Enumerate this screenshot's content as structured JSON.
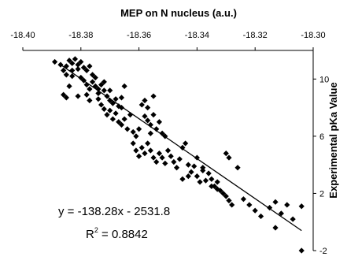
{
  "chart_data": {
    "type": "scatter",
    "title": "MEP on N nucleus (a.u.)",
    "xlabel": "MEP on N nucleus (a.u.)",
    "ylabel": "Experimental pKa Value",
    "x_axis_position": "top",
    "y_axis_position": "right",
    "x_reversed": true,
    "xlim": [
      -18.4,
      -18.3
    ],
    "ylim": [
      -2,
      12
    ],
    "x_ticks": [
      "-18.40",
      "-18.38",
      "-18.36",
      "-18.34",
      "-18.32",
      "-18.30"
    ],
    "y_ticks": [
      "10",
      "6",
      "2",
      "-2"
    ],
    "grid": false,
    "marker": "diamond",
    "marker_color": "#000000",
    "trendline": {
      "x": [
        -18.387,
        -18.304
      ],
      "y": [
        11.0,
        -0.6
      ]
    },
    "equation_line1": "y = -138.28x - 2531.8",
    "r2_prefix": "R",
    "r2_exponent": "2",
    "r2_value": " = 0.8842",
    "points": [
      [
        -18.389,
        11.2
      ],
      [
        -18.387,
        11.0
      ],
      [
        -18.385,
        10.9
      ],
      [
        -18.384,
        11.3
      ],
      [
        -18.383,
        11.1
      ],
      [
        -18.382,
        11.4
      ],
      [
        -18.381,
        11.0
      ],
      [
        -18.381,
        10.7
      ],
      [
        -18.38,
        11.2
      ],
      [
        -18.379,
        10.8
      ],
      [
        -18.378,
        10.6
      ],
      [
        -18.377,
        10.9
      ],
      [
        -18.376,
        10.3
      ],
      [
        -18.375,
        10.1
      ],
      [
        -18.386,
        10.6
      ],
      [
        -18.385,
        10.3
      ],
      [
        -18.383,
        10.6
      ],
      [
        -18.383,
        10.2
      ],
      [
        -18.384,
        9.5
      ],
      [
        -18.386,
        8.9
      ],
      [
        -18.385,
        8.7
      ],
      [
        -18.38,
        10.1
      ],
      [
        -18.379,
        9.9
      ],
      [
        -18.378,
        9.6
      ],
      [
        -18.377,
        9.3
      ],
      [
        -18.376,
        9.8
      ],
      [
        -18.375,
        9.5
      ],
      [
        -18.374,
        9.0
      ],
      [
        -18.373,
        9.6
      ],
      [
        -18.372,
        9.8
      ],
      [
        -18.372,
        9.2
      ],
      [
        -18.371,
        8.8
      ],
      [
        -18.37,
        8.5
      ],
      [
        -18.369,
        8.3
      ],
      [
        -18.368,
        8.6
      ],
      [
        -18.367,
        8.1
      ],
      [
        -18.366,
        8.7
      ],
      [
        -18.365,
        9.5
      ],
      [
        -18.374,
        8.6
      ],
      [
        -18.373,
        8.2
      ],
      [
        -18.372,
        7.9
      ],
      [
        -18.371,
        7.5
      ],
      [
        -18.37,
        7.8
      ],
      [
        -18.369,
        7.2
      ],
      [
        -18.368,
        7.6
      ],
      [
        -18.367,
        7.0
      ],
      [
        -18.366,
        6.8
      ],
      [
        -18.365,
        7.2
      ],
      [
        -18.364,
        6.5
      ],
      [
        -18.363,
        7.5
      ],
      [
        -18.362,
        6.3
      ],
      [
        -18.361,
        6.0
      ],
      [
        -18.36,
        6.5
      ],
      [
        -18.359,
        8.2
      ],
      [
        -18.358,
        8.5
      ],
      [
        -18.357,
        8.0
      ],
      [
        -18.355,
        8.8
      ],
      [
        -18.358,
        7.4
      ],
      [
        -18.357,
        7.1
      ],
      [
        -18.356,
        6.8
      ],
      [
        -18.356,
        6.2
      ],
      [
        -18.355,
        7.5
      ],
      [
        -18.354,
        6.5
      ],
      [
        -18.353,
        7.0
      ],
      [
        -18.352,
        6.2
      ],
      [
        -18.351,
        6.0
      ],
      [
        -18.362,
        5.5
      ],
      [
        -18.361,
        5.0
      ],
      [
        -18.36,
        4.6
      ],
      [
        -18.359,
        5.2
      ],
      [
        -18.358,
        4.8
      ],
      [
        -18.357,
        5.5
      ],
      [
        -18.356,
        5.0
      ],
      [
        -18.355,
        4.5
      ],
      [
        -18.354,
        4.2
      ],
      [
        -18.353,
        4.8
      ],
      [
        -18.352,
        4.5
      ],
      [
        -18.351,
        4.1
      ],
      [
        -18.35,
        5.0
      ],
      [
        -18.349,
        4.6
      ],
      [
        -18.348,
        4.2
      ],
      [
        -18.347,
        3.8
      ],
      [
        -18.346,
        4.4
      ],
      [
        -18.345,
        5.2
      ],
      [
        -18.344,
        5.5
      ],
      [
        -18.343,
        4.0
      ],
      [
        -18.342,
        3.5
      ],
      [
        -18.341,
        3.9
      ],
      [
        -18.34,
        3.2
      ],
      [
        -18.339,
        2.8
      ],
      [
        -18.338,
        3.6
      ],
      [
        -18.337,
        2.9
      ],
      [
        -18.336,
        3.4
      ],
      [
        -18.335,
        3.0
      ],
      [
        -18.334,
        2.5
      ],
      [
        -18.333,
        2.8
      ],
      [
        -18.332,
        2.2
      ],
      [
        -18.331,
        2.0
      ],
      [
        -18.33,
        1.8
      ],
      [
        -18.329,
        1.5
      ],
      [
        -18.328,
        1.2
      ],
      [
        -18.345,
        3.0
      ],
      [
        -18.343,
        3.2
      ],
      [
        -18.34,
        4.5
      ],
      [
        -18.338,
        3.8
      ],
      [
        -18.335,
        2.5
      ],
      [
        -18.333,
        2.3
      ],
      [
        -18.33,
        4.8
      ],
      [
        -18.329,
        4.5
      ],
      [
        -18.326,
        3.8
      ],
      [
        -18.324,
        1.6
      ],
      [
        -18.322,
        1.2
      ],
      [
        -18.32,
        0.8
      ],
      [
        -18.318,
        0.4
      ],
      [
        -18.315,
        1.0
      ],
      [
        -18.313,
        1.4
      ],
      [
        -18.311,
        0.6
      ],
      [
        -18.309,
        1.2
      ],
      [
        -18.307,
        0.2
      ],
      [
        -18.313,
        -0.4
      ],
      [
        -18.304,
        1.1
      ],
      [
        -18.304,
        -2.0
      ],
      [
        -18.381,
        8.8
      ],
      [
        -18.378,
        8.9
      ],
      [
        -18.377,
        8.5
      ],
      [
        -18.374,
        9.3
      ],
      [
        -18.37,
        9.2
      ],
      [
        -18.366,
        8.0
      ]
    ]
  }
}
